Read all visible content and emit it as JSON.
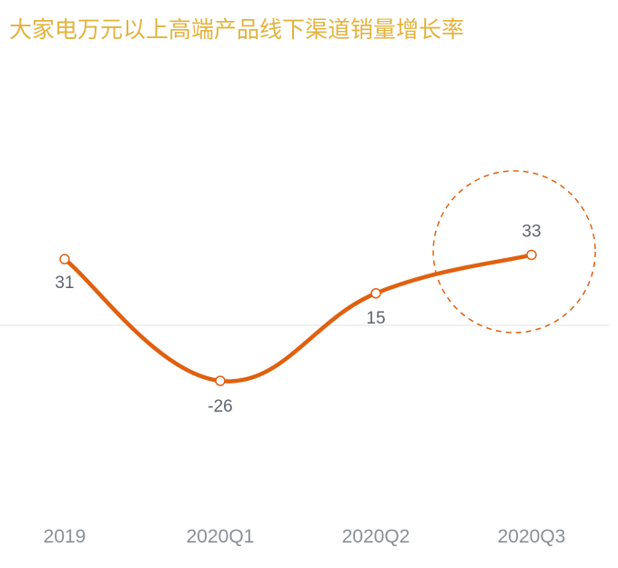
{
  "chart_data": {
    "type": "line",
    "title": "大家电万元以上高端产品线下渠道销量增长率",
    "categories": [
      "2019",
      "2020Q1",
      "2020Q2",
      "2020Q3"
    ],
    "series": [
      {
        "values": [
          31,
          -26,
          15,
          33
        ]
      }
    ],
    "data_labels": [
      "31",
      "-26",
      "15",
      "33"
    ],
    "xlabel": "",
    "ylabel": "",
    "ylim": [
      -80,
      80
    ],
    "grid": false,
    "baseline": 0,
    "highlight": {
      "category": "2020Q3",
      "shape": "dashed-circle"
    },
    "colors": {
      "title": "#E2B33D",
      "line": "#E0600F",
      "baseline": "#E3E3E3",
      "highlight": "#E0600F",
      "tick_label": "#8A8F99",
      "data_label": "#5E6470"
    }
  }
}
